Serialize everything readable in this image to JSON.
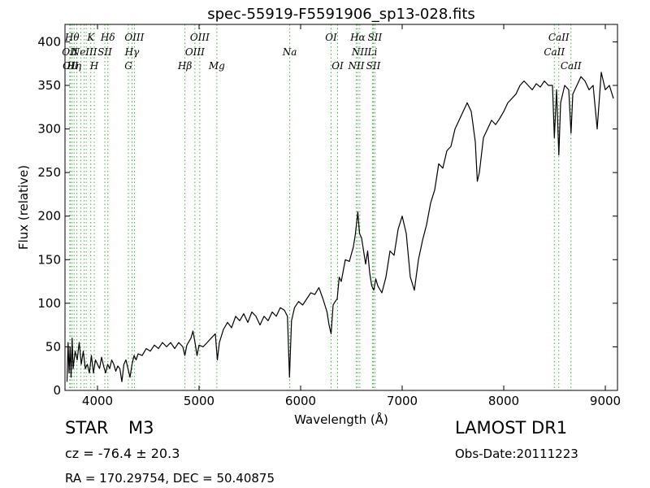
{
  "chart_data": {
    "type": "line",
    "title": "spec-55919-F5591906_sp13-028.fits",
    "xlabel": "Wavelength (Å)",
    "ylabel": "Flux (relative)",
    "xlim": [
      3680,
      9120
    ],
    "ylim": [
      0,
      420
    ],
    "xticks": [
      4000,
      5000,
      6000,
      7000,
      8000,
      9000
    ],
    "yticks": [
      0,
      50,
      100,
      150,
      200,
      250,
      300,
      350,
      400
    ],
    "grid": false,
    "series": [
      {
        "values": [
          [
            3700,
            10
          ],
          [
            3710,
            55
          ],
          [
            3720,
            20
          ],
          [
            3730,
            50
          ],
          [
            3740,
            15
          ],
          [
            3750,
            60
          ],
          [
            3760,
            25
          ],
          [
            3780,
            45
          ],
          [
            3800,
            35
          ],
          [
            3820,
            55
          ],
          [
            3840,
            30
          ],
          [
            3860,
            45
          ],
          [
            3880,
            25
          ],
          [
            3900,
            30
          ],
          [
            3920,
            20
          ],
          [
            3940,
            40
          ],
          [
            3960,
            20
          ],
          [
            3980,
            35
          ],
          [
            4000,
            30
          ],
          [
            4020,
            25
          ],
          [
            4040,
            38
          ],
          [
            4060,
            28
          ],
          [
            4080,
            20
          ],
          [
            4100,
            30
          ],
          [
            4120,
            25
          ],
          [
            4140,
            35
          ],
          [
            4160,
            30
          ],
          [
            4180,
            22
          ],
          [
            4200,
            28
          ],
          [
            4220,
            25
          ],
          [
            4240,
            10
          ],
          [
            4260,
            30
          ],
          [
            4280,
            35
          ],
          [
            4300,
            25
          ],
          [
            4320,
            15
          ],
          [
            4340,
            30
          ],
          [
            4360,
            40
          ],
          [
            4380,
            35
          ],
          [
            4400,
            42
          ],
          [
            4440,
            40
          ],
          [
            4480,
            48
          ],
          [
            4520,
            45
          ],
          [
            4560,
            52
          ],
          [
            4600,
            48
          ],
          [
            4640,
            55
          ],
          [
            4680,
            50
          ],
          [
            4720,
            55
          ],
          [
            4760,
            48
          ],
          [
            4800,
            55
          ],
          [
            4840,
            50
          ],
          [
            4860,
            40
          ],
          [
            4880,
            52
          ],
          [
            4920,
            60
          ],
          [
            4940,
            68
          ],
          [
            4960,
            55
          ],
          [
            4980,
            40
          ],
          [
            5000,
            52
          ],
          [
            5040,
            50
          ],
          [
            5080,
            55
          ],
          [
            5120,
            60
          ],
          [
            5160,
            65
          ],
          [
            5180,
            35
          ],
          [
            5200,
            55
          ],
          [
            5240,
            70
          ],
          [
            5280,
            78
          ],
          [
            5320,
            72
          ],
          [
            5360,
            85
          ],
          [
            5400,
            80
          ],
          [
            5440,
            88
          ],
          [
            5480,
            78
          ],
          [
            5520,
            90
          ],
          [
            5560,
            85
          ],
          [
            5600,
            75
          ],
          [
            5640,
            85
          ],
          [
            5680,
            80
          ],
          [
            5720,
            90
          ],
          [
            5760,
            85
          ],
          [
            5800,
            95
          ],
          [
            5840,
            92
          ],
          [
            5870,
            85
          ],
          [
            5890,
            15
          ],
          [
            5910,
            80
          ],
          [
            5940,
            95
          ],
          [
            5980,
            102
          ],
          [
            6020,
            98
          ],
          [
            6060,
            105
          ],
          [
            6100,
            112
          ],
          [
            6140,
            110
          ],
          [
            6180,
            118
          ],
          [
            6220,
            105
          ],
          [
            6260,
            90
          ],
          [
            6280,
            75
          ],
          [
            6300,
            65
          ],
          [
            6320,
            98
          ],
          [
            6340,
            102
          ],
          [
            6360,
            105
          ],
          [
            6380,
            130
          ],
          [
            6400,
            125
          ],
          [
            6440,
            150
          ],
          [
            6480,
            148
          ],
          [
            6520,
            165
          ],
          [
            6540,
            180
          ],
          [
            6563,
            205
          ],
          [
            6580,
            180
          ],
          [
            6600,
            175
          ],
          [
            6620,
            160
          ],
          [
            6640,
            145
          ],
          [
            6660,
            160
          ],
          [
            6680,
            135
          ],
          [
            6700,
            120
          ],
          [
            6720,
            115
          ],
          [
            6740,
            128
          ],
          [
            6760,
            120
          ],
          [
            6800,
            112
          ],
          [
            6840,
            130
          ],
          [
            6880,
            160
          ],
          [
            6920,
            155
          ],
          [
            6960,
            185
          ],
          [
            7000,
            200
          ],
          [
            7040,
            180
          ],
          [
            7080,
            130
          ],
          [
            7120,
            115
          ],
          [
            7160,
            150
          ],
          [
            7200,
            172
          ],
          [
            7240,
            190
          ],
          [
            7280,
            215
          ],
          [
            7320,
            230
          ],
          [
            7360,
            260
          ],
          [
            7400,
            255
          ],
          [
            7440,
            275
          ],
          [
            7480,
            280
          ],
          [
            7520,
            300
          ],
          [
            7560,
            310
          ],
          [
            7600,
            320
          ],
          [
            7640,
            330
          ],
          [
            7680,
            320
          ],
          [
            7720,
            285
          ],
          [
            7740,
            240
          ],
          [
            7760,
            250
          ],
          [
            7800,
            290
          ],
          [
            7840,
            300
          ],
          [
            7880,
            310
          ],
          [
            7920,
            305
          ],
          [
            7960,
            312
          ],
          [
            8000,
            320
          ],
          [
            8040,
            330
          ],
          [
            8080,
            335
          ],
          [
            8120,
            340
          ],
          [
            8160,
            350
          ],
          [
            8200,
            355
          ],
          [
            8240,
            350
          ],
          [
            8280,
            345
          ],
          [
            8320,
            352
          ],
          [
            8360,
            348
          ],
          [
            8400,
            355
          ],
          [
            8440,
            350
          ],
          [
            8480,
            350
          ],
          [
            8498,
            290
          ],
          [
            8520,
            345
          ],
          [
            8542,
            270
          ],
          [
            8560,
            330
          ],
          [
            8600,
            350
          ],
          [
            8640,
            345
          ],
          [
            8662,
            295
          ],
          [
            8680,
            340
          ],
          [
            8720,
            350
          ],
          [
            8760,
            360
          ],
          [
            8800,
            355
          ],
          [
            8840,
            345
          ],
          [
            8880,
            350
          ],
          [
            8920,
            300
          ],
          [
            8960,
            365
          ],
          [
            9000,
            345
          ],
          [
            9040,
            350
          ],
          [
            9080,
            335
          ]
        ]
      }
    ],
    "line_markers": [
      {
        "x": 3727,
        "label": "OII",
        "row": 2
      },
      {
        "x": 3734,
        "label": "OII",
        "row": 3
      },
      {
        "x": 3750,
        "label": "Hθ",
        "row": 1
      },
      {
        "x": 3770,
        "label": "Hη",
        "row": 3
      },
      {
        "x": 3797,
        "label": "",
        "row": 0
      },
      {
        "x": 3835,
        "label": "",
        "row": 0
      },
      {
        "x": 3869,
        "label": "NeIII",
        "row": 2
      },
      {
        "x": 3889,
        "label": "",
        "row": 0
      },
      {
        "x": 3934,
        "label": "K",
        "row": 1
      },
      {
        "x": 3968,
        "label": "H",
        "row": 3
      },
      {
        "x": 4072,
        "label": "SII",
        "row": 2
      },
      {
        "x": 4102,
        "label": "Hδ",
        "row": 1
      },
      {
        "x": 4304,
        "label": "G",
        "row": 3
      },
      {
        "x": 4340,
        "label": "Hγ",
        "row": 2
      },
      {
        "x": 4363,
        "label": "OIII",
        "row": 1
      },
      {
        "x": 4861,
        "label": "Hβ",
        "row": 3
      },
      {
        "x": 4959,
        "label": "OIII",
        "row": 2
      },
      {
        "x": 5007,
        "label": "OIII",
        "row": 1
      },
      {
        "x": 5175,
        "label": "Mg",
        "row": 3
      },
      {
        "x": 5893,
        "label": "Na",
        "row": 2
      },
      {
        "x": 6300,
        "label": "OI",
        "row": 1
      },
      {
        "x": 6364,
        "label": "OI",
        "row": 3
      },
      {
        "x": 6548,
        "label": "NII",
        "row": 3
      },
      {
        "x": 6563,
        "label": "Hα",
        "row": 1
      },
      {
        "x": 6583,
        "label": "NII",
        "row": 2
      },
      {
        "x": 6707,
        "label": "Li",
        "row": 2
      },
      {
        "x": 6716,
        "label": "SII",
        "row": 3
      },
      {
        "x": 6731,
        "label": "SII",
        "row": 1
      },
      {
        "x": 8498,
        "label": "CaII",
        "row": 2
      },
      {
        "x": 8542,
        "label": "CaII",
        "row": 1
      },
      {
        "x": 8662,
        "label": "CaII",
        "row": 3
      }
    ]
  },
  "info": {
    "class": "STAR",
    "subclass": "M3",
    "survey": "LAMOST DR1",
    "cz": "cz = -76.4 ± 20.3",
    "obs_date": "Obs-Date:20111223",
    "coords": "RA = 170.29754, DEC = 50.40875"
  }
}
